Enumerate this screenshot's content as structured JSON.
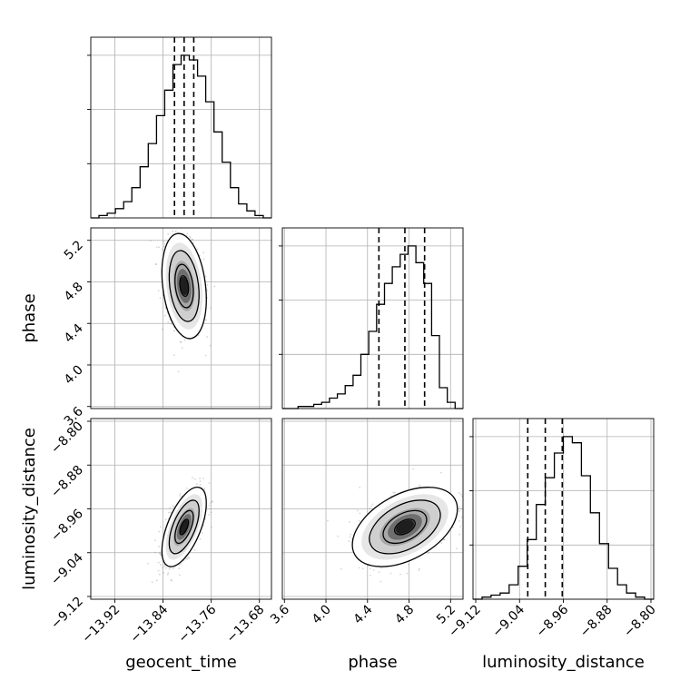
{
  "chart_data": {
    "type": "corner",
    "parameters": [
      "geocent_time",
      "phase",
      "luminosity_distance"
    ],
    "axis_labels": {
      "geocent_time": "geocent_time",
      "phase": "phase",
      "luminosity_distance": "luminosity_distance"
    },
    "ranges": {
      "geocent_time": [
        -13.96,
        -13.66
      ],
      "phase": [
        3.58,
        5.32
      ],
      "luminosity_distance": [
        -9.125,
        -8.795
      ]
    },
    "ticks": {
      "geocent_time": [
        "-13.92",
        "-13.84",
        "-13.76",
        "-13.68"
      ],
      "phase": [
        "3.6",
        "4.0",
        "4.4",
        "4.8",
        "5.2"
      ],
      "luminosity_distance": [
        "-9.12",
        "-9.04",
        "-8.96",
        "-8.88",
        "-8.80"
      ]
    },
    "quantiles": {
      "geocent_time": [
        -13.821,
        -13.805,
        -13.789
      ],
      "phase": [
        4.51,
        4.76,
        4.95
      ],
      "luminosity_distance": [
        -9.025,
        -8.993,
        -8.962
      ]
    },
    "histograms": {
      "geocent_time": [
        0,
        1,
        2,
        4,
        7,
        13,
        22,
        32,
        44,
        55,
        66,
        70,
        68,
        61,
        50,
        37,
        24,
        13,
        6,
        3,
        1,
        0
      ],
      "phase": [
        0,
        0,
        1,
        1,
        2,
        3,
        5,
        7,
        11,
        16,
        26,
        37,
        50,
        60,
        68,
        74,
        78,
        70,
        60,
        35,
        10,
        3,
        0
      ],
      "luminosity_distance": [
        0,
        1,
        2,
        3,
        7,
        16,
        29,
        46,
        59,
        71,
        79,
        76,
        60,
        42,
        27,
        15,
        7,
        3,
        1,
        0
      ]
    },
    "correlations": {
      "phase|geocent_time": -0.25,
      "luminosity_distance|geocent_time": 0.6,
      "luminosity_distance|phase": 0.45
    },
    "grid": true
  }
}
